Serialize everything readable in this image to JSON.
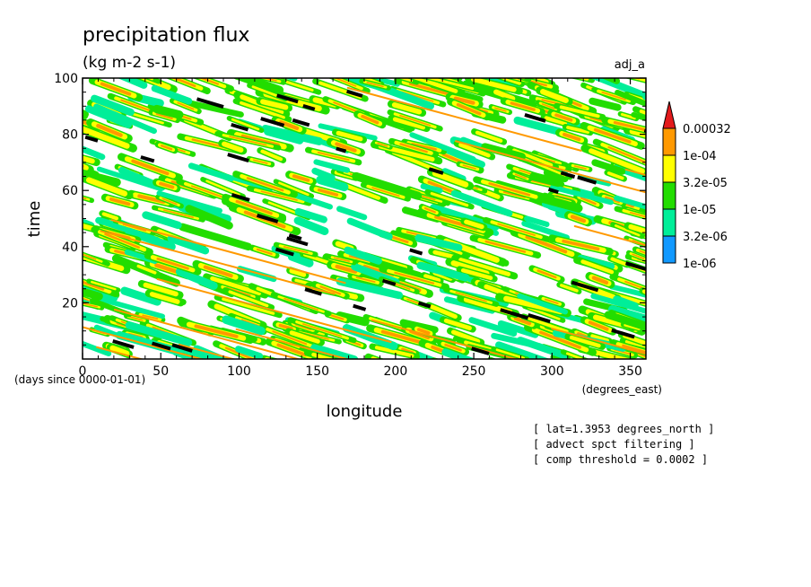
{
  "chart_data": {
    "type": "heatmap",
    "title": "precipitation flux",
    "subtitle": "(kg m-2 s-1)",
    "run_label": "adj_a",
    "xlabel": "longitude",
    "x_units": "(degrees_east)",
    "ylabel": "time",
    "y_units": "(days since 0000-01-01)",
    "xlim": [
      0,
      360
    ],
    "ylim": [
      0,
      100
    ],
    "x_ticks": [
      0,
      50,
      100,
      150,
      200,
      250,
      300,
      350
    ],
    "y_ticks": [
      20,
      40,
      60,
      80,
      100
    ],
    "levels": [
      "0.00032",
      "1e-04",
      "3.2e-05",
      "1e-05",
      "3.2e-06",
      "1e-06"
    ],
    "level_colors": [
      "#e31a1c",
      "#ff9900",
      "#ffff00",
      "#22dd00",
      "#00ee99",
      "#1199ff"
    ],
    "annotations": [
      "[ lat=1.3953 degrees_north ]",
      "[ advect spct filtering ]",
      "[ comp threshold = 0.0002 ]"
    ],
    "pattern_note": "Westward-propagating bands: values rise toward 1e-04..0.00032 along diagonal streaks descending left-to-right"
  }
}
